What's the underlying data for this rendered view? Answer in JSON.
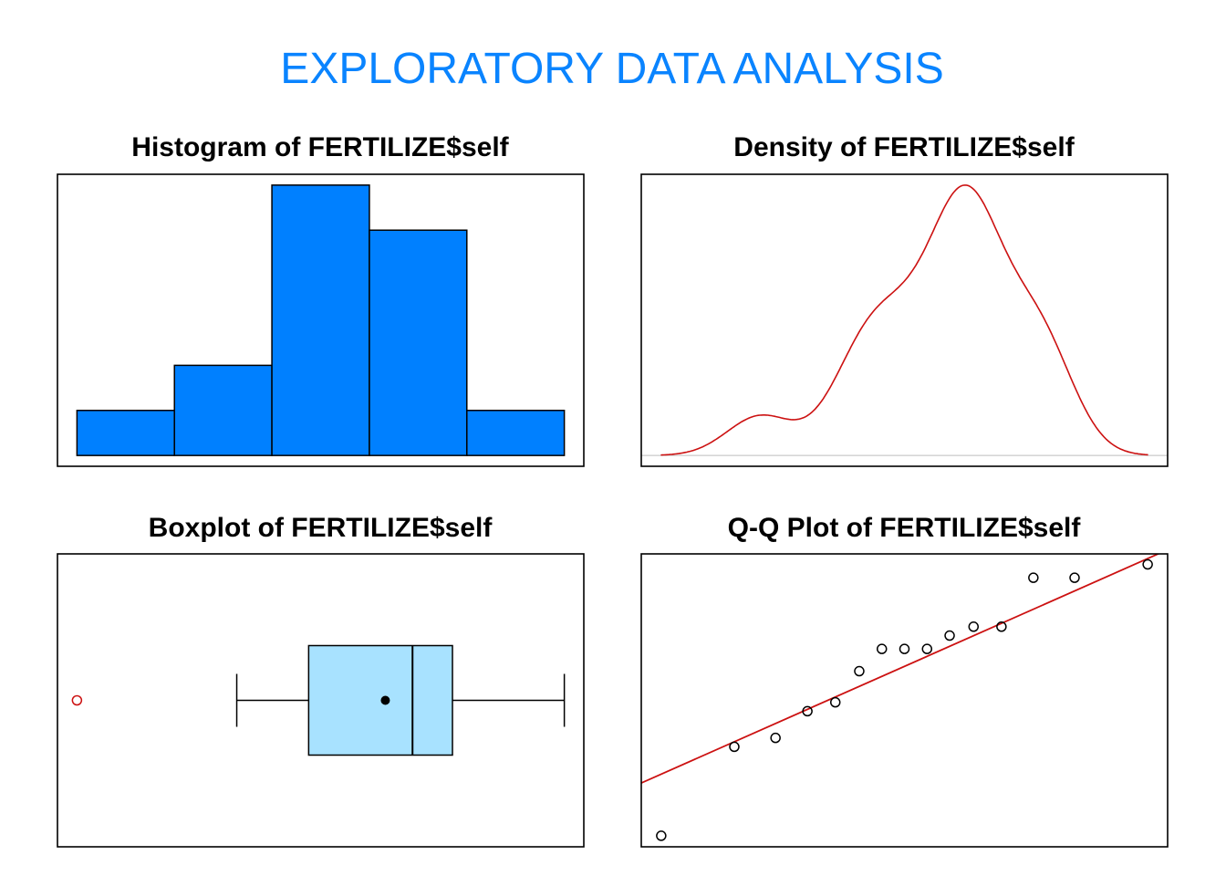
{
  "title": "EXPLORATORY  DATA  ANALYSIS",
  "colors": {
    "title": "#0A84FF",
    "hist_fill": "#0080FF",
    "box_fill": "#A8E2FF",
    "accent_red": "#CC1111",
    "baseline": "#BEBEBE"
  },
  "chart_data": [
    {
      "type": "bar",
      "title": "Histogram of FERTILIZE$self",
      "bin_edges": [
        12,
        14,
        16,
        18,
        20,
        22
      ],
      "values": [
        1,
        2,
        6,
        5,
        1
      ],
      "xlabel": "",
      "ylabel": ""
    },
    {
      "type": "line",
      "title": "Density of FERTILIZE$self",
      "sample": [
        12.75,
        15.25,
        15.5,
        16.25,
        16.5,
        17.375,
        18,
        18,
        18,
        18.375,
        18.625,
        18.625,
        20,
        20,
        20.375
      ],
      "kernel": "gaussian"
    },
    {
      "type": "box",
      "title": "Boxplot of FERTILIZE$self",
      "orientation": "horizontal",
      "whisker_low": 15.25,
      "q1": 16.375,
      "median": 18,
      "q3": 18.625,
      "whisker_high": 20.375,
      "mean": 17.575,
      "outliers": [
        12.75
      ]
    },
    {
      "type": "scatter",
      "title": "Q-Q Plot of FERTILIZE$self",
      "x": [
        -1.83,
        -1.28,
        -0.97,
        -0.73,
        -0.52,
        -0.34,
        -0.17,
        0,
        0.17,
        0.34,
        0.52,
        0.73,
        0.97,
        1.28,
        1.83
      ],
      "y": [
        12.75,
        15.25,
        15.5,
        16.25,
        16.5,
        17.375,
        18,
        18,
        18,
        18.375,
        18.625,
        18.625,
        20,
        20,
        20.375
      ],
      "reference_line": {
        "intercept": 17.51,
        "slope": 1.655
      },
      "xlim": [
        -1.98,
        1.98
      ],
      "ylim": [
        12.44,
        20.67
      ]
    }
  ]
}
